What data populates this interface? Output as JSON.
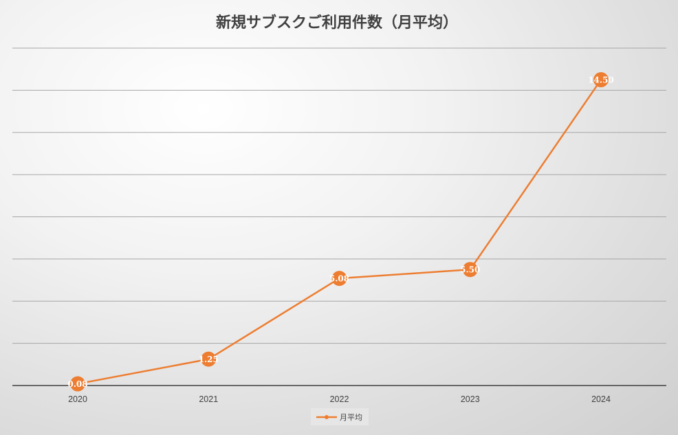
{
  "chart_data": {
    "type": "line",
    "title": "新規サブスクご利用件数（月平均）",
    "categories": [
      "2020",
      "2021",
      "2022",
      "2023",
      "2024"
    ],
    "series": [
      {
        "name": "月平均",
        "values": [
          0.08,
          1.25,
          5.08,
          5.5,
          14.5
        ],
        "labels": [
          "0.08",
          "1.25",
          "5.08",
          "5.50",
          "14.50"
        ]
      }
    ],
    "ylim": [
      0,
      16
    ],
    "grid": true,
    "legend": "bottom",
    "colors": {
      "line": "#ED7D31",
      "axis": "#404040",
      "grid": "#A6A6A6",
      "label": "#FFFFFF"
    }
  }
}
